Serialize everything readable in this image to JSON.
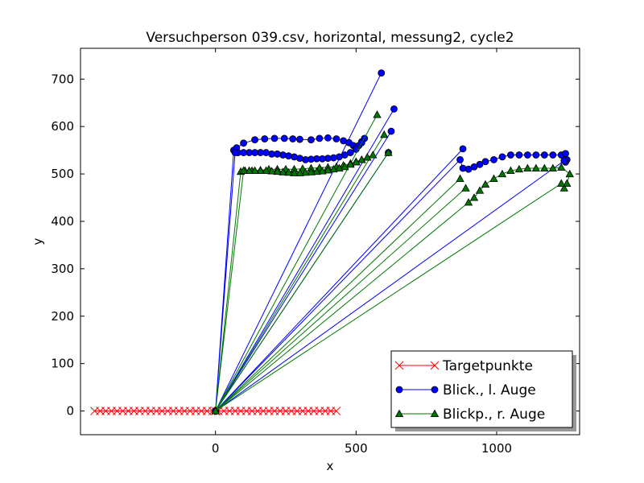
{
  "chart_data": {
    "type": "line",
    "title": "Versuchperson 039.csv, horizontal, messung2, cycle2",
    "xlabel": "x",
    "ylabel": "y",
    "xlim": [
      -480,
      1295
    ],
    "ylim": [
      -50,
      765
    ],
    "xticks": [
      0,
      500,
      1000
    ],
    "yticks": [
      0,
      100,
      200,
      300,
      400,
      500,
      600,
      700
    ],
    "grid": false,
    "legend": {
      "position": "bottom-right"
    },
    "series": [
      {
        "name": "Targetpunkte",
        "color": "#ff0000",
        "marker": "x",
        "x": [
          -430,
          -410,
          -390,
          -370,
          -350,
          -330,
          -310,
          -290,
          -270,
          -250,
          -230,
          -210,
          -190,
          -170,
          -150,
          -130,
          -110,
          -90,
          -70,
          -50,
          -30,
          -10,
          0,
          10,
          30,
          50,
          70,
          90,
          110,
          130,
          150,
          170,
          190,
          210,
          230,
          250,
          270,
          290,
          310,
          330,
          350,
          370,
          390,
          410,
          430
        ],
        "y": [
          0,
          0,
          0,
          0,
          0,
          0,
          0,
          0,
          0,
          0,
          0,
          0,
          0,
          0,
          0,
          0,
          0,
          0,
          0,
          0,
          0,
          0,
          0,
          0,
          0,
          0,
          0,
          0,
          0,
          0,
          0,
          0,
          0,
          0,
          0,
          0,
          0,
          0,
          0,
          0,
          0,
          0,
          0,
          0,
          0
        ]
      },
      {
        "name": "Blick., l. Auge",
        "color": "#0000ff",
        "marker": "circle",
        "x": [
          0,
          590,
          0,
          635,
          0,
          625,
          0,
          65,
          75,
          100,
          140,
          175,
          210,
          245,
          275,
          300,
          340,
          370,
          400,
          430,
          455,
          475,
          490,
          500,
          510,
          520,
          530,
          520,
          500,
          480,
          460,
          440,
          420,
          400,
          380,
          360,
          340,
          320,
          300,
          280,
          260,
          240,
          220,
          200,
          180,
          160,
          140,
          120,
          100,
          80,
          70,
          0,
          615,
          0,
          880,
          0,
          870,
          880,
          900,
          920,
          940,
          960,
          990,
          1020,
          1050,
          1080,
          1110,
          1140,
          1170,
          1200,
          1230,
          1245,
          1250,
          1245,
          1240,
          0
        ],
        "y": [
          0,
          713,
          0,
          637,
          0,
          590,
          0,
          550,
          555,
          565,
          572,
          574,
          575,
          575,
          574,
          573,
          572,
          575,
          576,
          574,
          570,
          566,
          560,
          555,
          560,
          568,
          575,
          566,
          552,
          545,
          540,
          536,
          534,
          533,
          532,
          532,
          531,
          530,
          533,
          536,
          538,
          540,
          542,
          542,
          545,
          545,
          545,
          545,
          545,
          545,
          545,
          0,
          545,
          0,
          553,
          0,
          530,
          512,
          510,
          515,
          520,
          526,
          530,
          536,
          540,
          540,
          540,
          540,
          540,
          540,
          540,
          543,
          530,
          525,
          528,
          0
        ]
      },
      {
        "name": "Blickp., r. Auge",
        "color": "#007700",
        "marker": "triangle",
        "x": [
          0,
          575,
          0,
          600,
          0,
          615,
          0,
          90,
          105,
          130,
          160,
          190,
          220,
          250,
          280,
          310,
          340,
          370,
          400,
          430,
          455,
          480,
          500,
          520,
          540,
          560,
          540,
          520,
          500,
          480,
          460,
          440,
          420,
          400,
          380,
          360,
          340,
          320,
          300,
          280,
          260,
          240,
          220,
          200,
          180,
          160,
          140,
          120,
          100,
          0,
          870,
          0,
          890,
          0,
          900,
          920,
          940,
          960,
          990,
          1020,
          1050,
          1080,
          1110,
          1140,
          1170,
          1200,
          1230,
          1260,
          1250,
          1240,
          1230,
          0
        ],
        "y": [
          0,
          625,
          0,
          583,
          0,
          545,
          0,
          505,
          507,
          507,
          508,
          510,
          510,
          510,
          510,
          511,
          512,
          513,
          514,
          515,
          518,
          522,
          526,
          530,
          535,
          540,
          535,
          530,
          525,
          520,
          515,
          512,
          510,
          508,
          506,
          505,
          504,
          503,
          502,
          502,
          503,
          504,
          505,
          506,
          507,
          507,
          507,
          507,
          507,
          0,
          490,
          0,
          470,
          0,
          440,
          450,
          465,
          478,
          490,
          500,
          507,
          510,
          512,
          512,
          512,
          512,
          514,
          500,
          480,
          470,
          480,
          0
        ]
      }
    ]
  }
}
